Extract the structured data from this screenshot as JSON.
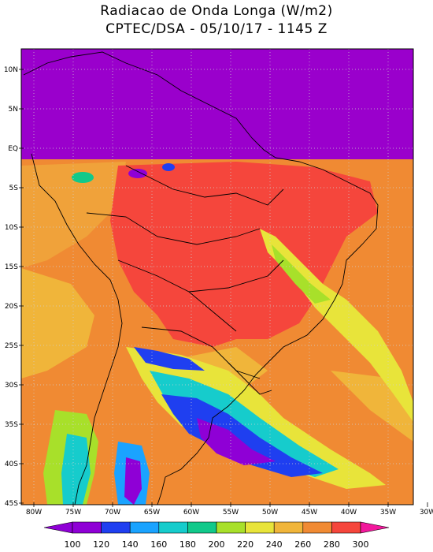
{
  "header": {
    "title": "Radiacao de Onda Longa (W/m2)",
    "subtitle": "CPTEC/DSA - 05/10/17 - 1145 Z"
  },
  "map": {
    "lat_labels": [
      "10N",
      "5N",
      "EQ",
      "5S",
      "10S",
      "15S",
      "20S",
      "25S",
      "30S",
      "35S",
      "40S",
      "45S"
    ],
    "lon_labels": [
      "80W",
      "75W",
      "70W",
      "65W",
      "60W",
      "55W",
      "50W",
      "45W",
      "40W",
      "35W",
      "30W"
    ],
    "lat_range": [
      10,
      -45
    ],
    "lon_range": [
      -80,
      -30
    ]
  },
  "colorbar": {
    "labels": [
      "100",
      "120",
      "140",
      "160",
      "180",
      "200",
      "220",
      "240",
      "260",
      "280",
      "300"
    ],
    "colors": [
      "#8f00d6",
      "#1f3ff0",
      "#1aa3ff",
      "#16cccc",
      "#11c98a",
      "#a8e02a",
      "#e8e43a",
      "#f0b53a",
      "#f08a33",
      "#f5463c",
      "#f2189c"
    ]
  }
}
